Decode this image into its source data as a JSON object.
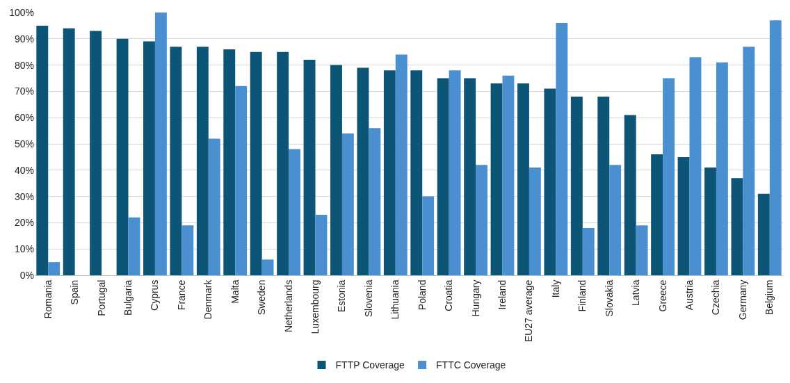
{
  "chart_data": {
    "type": "bar",
    "categories": [
      "Romania",
      "Spain",
      "Portugal",
      "Bulgaria",
      "Cyprus",
      "France",
      "Denmark",
      "Malta",
      "Sweden",
      "Netherlands",
      "Luxembourg",
      "Estonia",
      "Slovenia",
      "Lithuania",
      "Poland",
      "Croatia",
      "Hungary",
      "Ireland",
      "EU27 average",
      "Italy",
      "Finland",
      "Slovakia",
      "Latvia",
      "Greece",
      "Austria",
      "Czechia",
      "Germany",
      "Belgium"
    ],
    "series": [
      {
        "name": "FTTP Coverage",
        "color": "#0d5577",
        "values": [
          95,
          94,
          93,
          90,
          89,
          87,
          87,
          86,
          85,
          85,
          82,
          80,
          79,
          78,
          78,
          75,
          75,
          73,
          73,
          71,
          68,
          68,
          61,
          46,
          45,
          41,
          37,
          31
        ]
      },
      {
        "name": "FTTC Coverage",
        "color": "#4a90d0",
        "values": [
          5,
          0,
          0,
          22,
          100,
          19,
          52,
          72,
          6,
          48,
          23,
          54,
          56,
          84,
          30,
          78,
          42,
          76,
          41,
          96,
          18,
          42,
          19,
          75,
          83,
          81,
          87,
          97
        ]
      }
    ],
    "ylim": [
      0,
      100
    ],
    "yticks": [
      {
        "value": 0,
        "label": "0%"
      },
      {
        "value": 10,
        "label": "10%"
      },
      {
        "value": 20,
        "label": "20%"
      },
      {
        "value": 30,
        "label": "30%"
      },
      {
        "value": 40,
        "label": "40%"
      },
      {
        "value": 50,
        "label": "50%"
      },
      {
        "value": 60,
        "label": "60%"
      },
      {
        "value": 70,
        "label": "70%"
      },
      {
        "value": 80,
        "label": "80%"
      },
      {
        "value": 90,
        "label": "90%"
      },
      {
        "value": 100,
        "label": "100%"
      }
    ],
    "grid": "y",
    "legend": "bottom"
  }
}
